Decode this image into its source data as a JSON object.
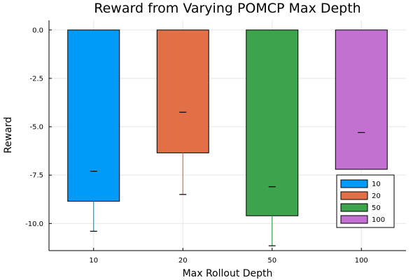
{
  "chart_data": {
    "type": "bar",
    "title": "Reward from Varying POMCP Max Depth",
    "xlabel": "Max Rollout Depth",
    "ylabel": "Reward",
    "categories": [
      "10",
      "20",
      "50",
      "100"
    ],
    "ylim": [
      -11.4,
      0.5
    ],
    "yticks": [
      0.0,
      -2.5,
      -5.0,
      -7.5,
      -10.0
    ],
    "ytick_labels": [
      "0.0",
      "-2.5",
      "-5.0",
      "-7.5",
      "-10.0"
    ],
    "grid": true,
    "legend_position": "bottom-right",
    "series": [
      {
        "name": "10",
        "color": "#009af9",
        "value": -8.85,
        "median": -7.3,
        "whisker_low": -10.4,
        "whisker_high": -8.85
      },
      {
        "name": "20",
        "color": "#e26f46",
        "value": -6.35,
        "median": -4.25,
        "whisker_low": -8.5,
        "whisker_high": -6.35
      },
      {
        "name": "50",
        "color": "#3da44d",
        "value": -9.6,
        "median": -8.1,
        "whisker_low": -11.15,
        "whisker_high": -9.6
      },
      {
        "name": "100",
        "color": "#c271d2",
        "value": -7.2,
        "median": -5.3,
        "whisker_low": -7.2,
        "whisker_high": -7.2
      }
    ]
  }
}
